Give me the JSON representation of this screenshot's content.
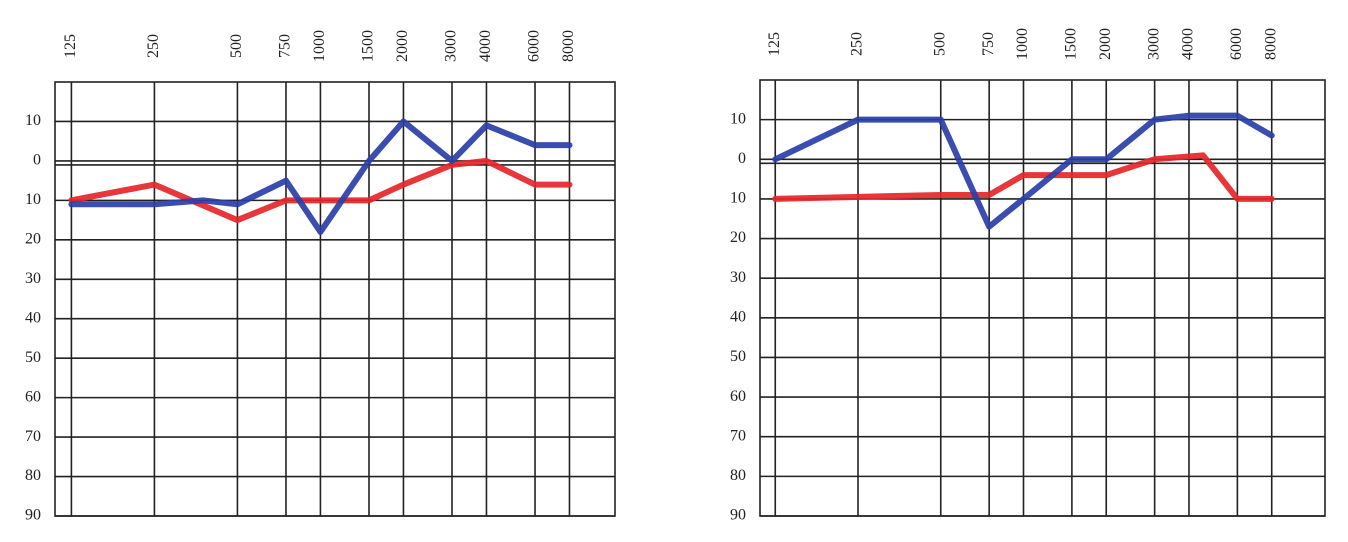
{
  "chart_data": [
    {
      "type": "line",
      "xscale": "log",
      "y_inverted": true,
      "xlim": [
        109,
        11700
      ],
      "xticks": [
        125,
        250,
        500,
        750,
        1000,
        1500,
        2000,
        3000,
        4000,
        6000,
        8000
      ],
      "ylim": [
        -20,
        90
      ],
      "yticks": [
        {
          "value": -10,
          "label": "10"
        },
        0,
        10,
        20,
        30,
        40,
        50,
        60,
        70,
        80,
        90
      ],
      "grid": true,
      "series": [
        {
          "color": "#e5262a",
          "x": [
            125,
            250,
            500,
            750,
            1000,
            1500,
            2000,
            3000,
            4000,
            6000,
            8000
          ],
          "values": [
            10,
            6,
            15,
            10,
            10,
            10,
            6,
            1,
            0,
            6,
            6
          ]
        },
        {
          "color": "#2a3fa8",
          "x": [
            125,
            250,
            375,
            500,
            750,
            1000,
            1500,
            2000,
            3000,
            4000,
            6000,
            8000
          ],
          "values": [
            11,
            11,
            10,
            11,
            5,
            18,
            0,
            -10,
            0,
            -9,
            -4,
            -4
          ]
        }
      ]
    },
    {
      "type": "line",
      "xscale": "log",
      "y_inverted": true,
      "xlim": [
        110,
        12500
      ],
      "xticks": [
        125,
        250,
        500,
        750,
        1000,
        1500,
        2000,
        3000,
        4000,
        6000,
        8000
      ],
      "ylim": [
        -20,
        90
      ],
      "yticks": [
        {
          "value": -10,
          "label": "10"
        },
        0,
        10,
        20,
        30,
        40,
        50,
        60,
        70,
        80,
        90
      ],
      "grid": true,
      "series": [
        {
          "color": "#e5262a",
          "x": [
            125,
            500,
            750,
            1000,
            1500,
            2000,
            3000,
            4500,
            6000,
            8000
          ],
          "values": [
            10,
            9,
            9,
            4,
            4,
            4,
            0,
            -1,
            10,
            10
          ]
        },
        {
          "color": "#2a3fa8",
          "x": [
            125,
            250,
            500,
            750,
            1000,
            1500,
            2000,
            3000,
            4000,
            6000,
            8000
          ],
          "values": [
            0,
            -10,
            -10,
            17,
            10,
            0,
            0,
            -10,
            -11,
            -11,
            -6
          ]
        }
      ]
    }
  ]
}
